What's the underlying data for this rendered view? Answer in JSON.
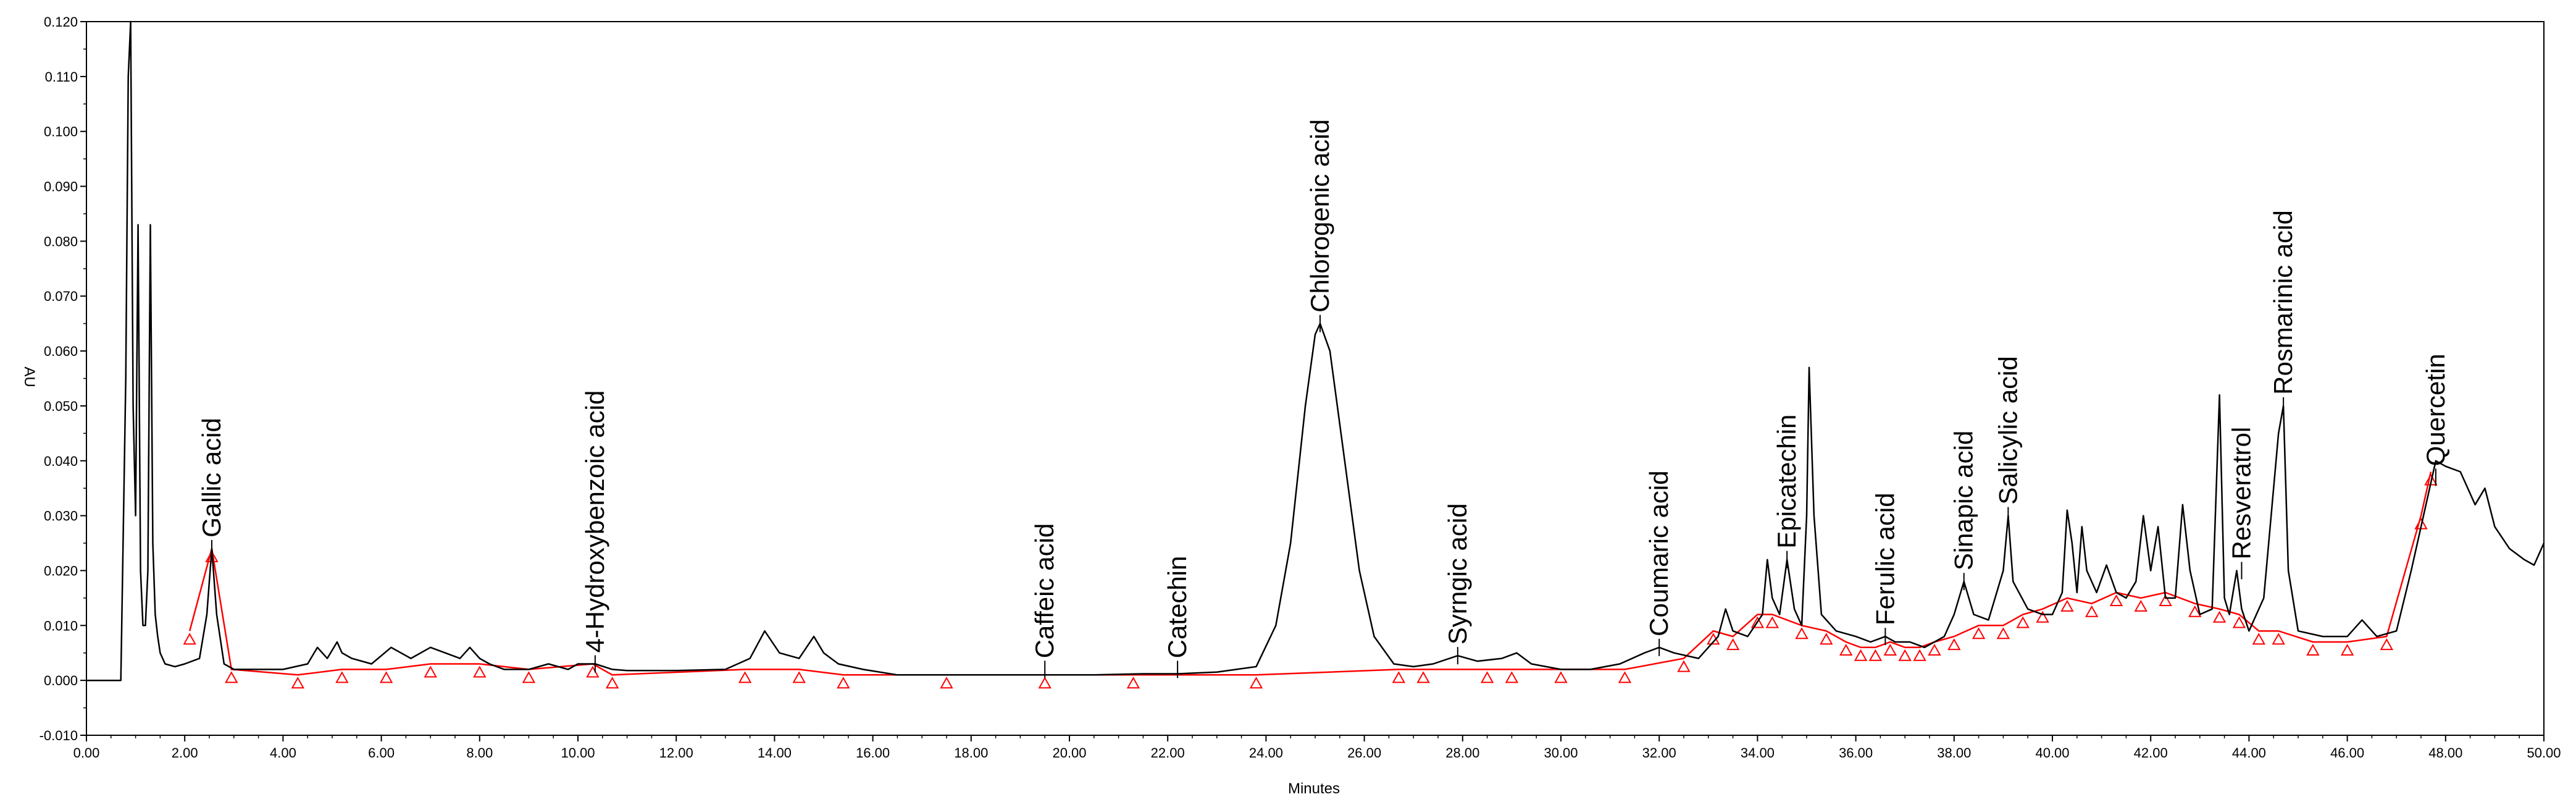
{
  "chart_data": {
    "type": "line",
    "xlabel": "Minutes",
    "ylabel": "AU",
    "xlim": [
      0,
      50
    ],
    "ylim": [
      -0.01,
      0.12
    ],
    "x_ticks": [
      0,
      2,
      4,
      6,
      8,
      10,
      12,
      14,
      16,
      18,
      20,
      22,
      24,
      26,
      28,
      30,
      32,
      34,
      36,
      38,
      40,
      42,
      44,
      46,
      48,
      50
    ],
    "x_tick_labels": [
      "0.00",
      "2.00",
      "4.00",
      "6.00",
      "8.00",
      "10.00",
      "12.00",
      "14.00",
      "16.00",
      "18.00",
      "20.00",
      "22.00",
      "24.00",
      "26.00",
      "28.00",
      "30.00",
      "32.00",
      "34.00",
      "36.00",
      "38.00",
      "40.00",
      "42.00",
      "44.00",
      "46.00",
      "48.00",
      "50.00"
    ],
    "y_ticks": [
      -0.01,
      0.0,
      0.01,
      0.02,
      0.03,
      0.04,
      0.05,
      0.06,
      0.07,
      0.08,
      0.09,
      0.1,
      0.11,
      0.12
    ],
    "y_tick_labels": [
      "-0.010",
      "0.000",
      "0.010",
      "0.020",
      "0.030",
      "0.040",
      "0.050",
      "0.060",
      "0.070",
      "0.080",
      "0.090",
      "0.100",
      "0.110",
      "0.120"
    ],
    "colors": {
      "trace": "#000000",
      "baseline": "#ff0000",
      "axis": "#000000"
    },
    "grid": false,
    "peaks": [
      {
        "label": "Gallic acid",
        "x": 2.55,
        "y": 0.024
      },
      {
        "label": "4-Hydroxybenzoic acid",
        "x": 10.35,
        "y": 0.003
      },
      {
        "label": "Caffeic acid",
        "x": 19.5,
        "y": 0.002
      },
      {
        "label": "Catechin",
        "x": 22.2,
        "y": 0.002
      },
      {
        "label": "Chlorogenic acid",
        "x": 25.1,
        "y": 0.065
      },
      {
        "label": "Syrngic acid",
        "x": 27.9,
        "y": 0.0045
      },
      {
        "label": "Coumaric acid",
        "x": 32.0,
        "y": 0.006
      },
      {
        "label": "Epicatechin",
        "x": 34.6,
        "y": 0.022
      },
      {
        "label": "Ferulic acid",
        "x": 36.6,
        "y": 0.008
      },
      {
        "label": "Sinapic acid",
        "x": 38.2,
        "y": 0.018
      },
      {
        "label": "Salicylic acid",
        "x": 39.1,
        "y": 0.03
      },
      {
        "label": "Resveratrol",
        "x": 43.85,
        "y": 0.02
      },
      {
        "label": "Rosmarinic acid",
        "x": 44.7,
        "y": 0.05
      },
      {
        "label": "Quercetin",
        "x": 47.8,
        "y": 0.037
      }
    ],
    "series": [
      {
        "x": [
          0,
          0.7,
          0.8,
          0.85,
          0.9,
          0.95,
          1.0,
          1.05,
          1.1,
          1.15,
          1.2,
          1.25,
          1.3,
          1.35,
          1.4,
          1.45,
          1.5,
          1.6,
          1.8,
          2.0,
          2.3,
          2.45,
          2.55,
          2.65,
          2.8,
          3.0,
          3.5,
          4.0,
          4.5,
          4.7,
          4.9,
          5.1,
          5.2,
          5.4,
          5.8,
          6.2,
          6.4,
          6.6,
          7.0,
          7.3,
          7.6,
          7.8,
          8.0,
          8.2,
          8.5,
          9.0,
          9.4,
          9.8,
          10.0,
          10.35,
          10.7,
          11.0,
          12.0,
          13.0,
          13.5,
          13.8,
          14.1,
          14.5,
          14.8,
          15.0,
          15.3,
          15.8,
          16.5,
          17.5,
          18.5,
          19.5,
          20.5,
          21.5,
          22.2,
          23.0,
          23.8,
          24.2,
          24.5,
          24.8,
          25.0,
          25.1,
          25.3,
          25.6,
          25.9,
          26.2,
          26.6,
          27.0,
          27.4,
          27.9,
          28.3,
          28.8,
          29.1,
          29.4,
          30.0,
          30.6,
          31.2,
          31.7,
          32.0,
          32.3,
          32.8,
          33.2,
          33.35,
          33.5,
          33.8,
          34.1,
          34.2,
          34.3,
          34.45,
          34.6,
          34.75,
          34.9,
          35.0,
          35.05,
          35.15,
          35.3,
          35.6,
          36.0,
          36.3,
          36.6,
          36.8,
          37.1,
          37.4,
          37.8,
          38.0,
          38.2,
          38.4,
          38.7,
          39.0,
          39.1,
          39.2,
          39.5,
          39.8,
          40.0,
          40.2,
          40.3,
          40.4,
          40.5,
          40.6,
          40.7,
          40.9,
          41.1,
          41.3,
          41.5,
          41.7,
          41.85,
          42.0,
          42.15,
          42.3,
          42.5,
          42.65,
          42.8,
          43.0,
          43.25,
          43.4,
          43.5,
          43.6,
          43.75,
          43.85,
          44.0,
          44.3,
          44.6,
          44.7,
          44.8,
          45.0,
          45.5,
          46.0,
          46.3,
          46.6,
          47.0,
          47.3,
          47.6,
          47.8,
          48.0,
          48.3,
          48.6,
          48.8,
          49.0,
          49.3,
          49.6,
          49.8,
          50.0
        ],
        "y": [
          0.0,
          0.0,
          0.055,
          0.11,
          0.12,
          0.05,
          0.03,
          0.083,
          0.02,
          0.01,
          0.01,
          0.02,
          0.083,
          0.025,
          0.012,
          0.008,
          0.005,
          0.003,
          0.0025,
          0.003,
          0.004,
          0.012,
          0.024,
          0.012,
          0.003,
          0.002,
          0.002,
          0.002,
          0.003,
          0.006,
          0.004,
          0.007,
          0.005,
          0.004,
          0.003,
          0.006,
          0.005,
          0.004,
          0.006,
          0.005,
          0.004,
          0.006,
          0.004,
          0.003,
          0.002,
          0.002,
          0.003,
          0.002,
          0.003,
          0.003,
          0.002,
          0.0018,
          0.0018,
          0.002,
          0.004,
          0.009,
          0.005,
          0.004,
          0.008,
          0.005,
          0.003,
          0.002,
          0.001,
          0.001,
          0.001,
          0.001,
          0.001,
          0.0012,
          0.0012,
          0.0015,
          0.0025,
          0.01,
          0.025,
          0.05,
          0.063,
          0.065,
          0.06,
          0.04,
          0.02,
          0.008,
          0.003,
          0.0025,
          0.003,
          0.0045,
          0.0035,
          0.004,
          0.005,
          0.003,
          0.002,
          0.002,
          0.003,
          0.005,
          0.006,
          0.005,
          0.004,
          0.008,
          0.013,
          0.009,
          0.008,
          0.012,
          0.022,
          0.015,
          0.012,
          0.022,
          0.013,
          0.01,
          0.03,
          0.057,
          0.03,
          0.012,
          0.009,
          0.008,
          0.007,
          0.008,
          0.007,
          0.007,
          0.006,
          0.008,
          0.012,
          0.018,
          0.012,
          0.011,
          0.02,
          0.03,
          0.018,
          0.013,
          0.012,
          0.012,
          0.016,
          0.031,
          0.025,
          0.016,
          0.028,
          0.02,
          0.016,
          0.021,
          0.016,
          0.015,
          0.018,
          0.03,
          0.02,
          0.028,
          0.015,
          0.015,
          0.032,
          0.02,
          0.012,
          0.013,
          0.052,
          0.015,
          0.012,
          0.02,
          0.013,
          0.009,
          0.015,
          0.045,
          0.05,
          0.02,
          0.009,
          0.008,
          0.008,
          0.011,
          0.008,
          0.009,
          0.02,
          0.032,
          0.04,
          0.039,
          0.038,
          0.032,
          0.035,
          0.028,
          0.024,
          0.022,
          0.021,
          0.025
        ]
      },
      {
        "name": "baseline",
        "x": [
          2.1,
          2.55,
          2.95,
          4.3,
          5.2,
          6.1,
          7.0,
          8.0,
          9.0,
          10.3,
          10.7,
          13.4,
          14.5,
          15.4,
          17.5,
          19.5,
          21.3,
          23.8,
          26.7,
          27.2,
          28.5,
          29.0,
          30.0,
          31.3,
          32.5,
          33.1,
          33.5,
          34.0,
          34.3,
          34.9,
          35.4,
          35.8,
          36.1,
          36.4,
          36.7,
          37.0,
          37.3,
          37.6,
          38.0,
          38.5,
          39.0,
          39.4,
          39.8,
          40.3,
          40.8,
          41.3,
          41.8,
          42.3,
          42.9,
          43.4,
          43.8,
          44.2,
          44.6,
          45.3,
          46.0,
          46.8,
          47.5,
          47.7
        ],
        "y": [
          0.009,
          0.024,
          0.002,
          0.001,
          0.002,
          0.002,
          0.003,
          0.003,
          0.002,
          0.003,
          0.001,
          0.002,
          0.002,
          0.001,
          0.001,
          0.001,
          0.001,
          0.001,
          0.002,
          0.002,
          0.002,
          0.002,
          0.002,
          0.002,
          0.004,
          0.009,
          0.008,
          0.012,
          0.012,
          0.01,
          0.009,
          0.007,
          0.006,
          0.006,
          0.007,
          0.006,
          0.006,
          0.007,
          0.008,
          0.01,
          0.01,
          0.012,
          0.013,
          0.015,
          0.014,
          0.016,
          0.015,
          0.016,
          0.014,
          0.013,
          0.012,
          0.009,
          0.009,
          0.007,
          0.007,
          0.008,
          0.03,
          0.038
        ]
      }
    ]
  }
}
